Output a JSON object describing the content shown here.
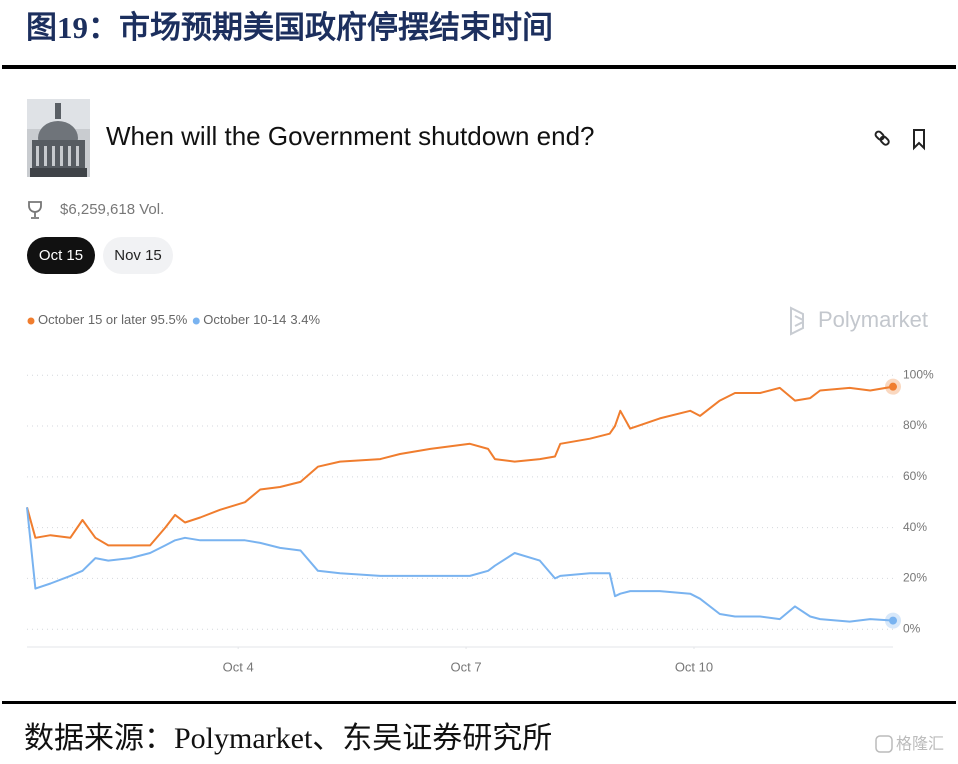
{
  "header": {
    "title": "图19：市场预期美国政府停摆结束时间"
  },
  "card": {
    "title": "When will the Government shutdown end?",
    "volume": "$6,259,618 Vol.",
    "tabs": [
      "Oct 15",
      "Nov 15"
    ],
    "brand": "Polymarket"
  },
  "chart_data": {
    "type": "line",
    "x": [
      1.22,
      1.33,
      1.53,
      1.79,
      1.95,
      2.12,
      2.29,
      2.58,
      2.84,
      3.04,
      3.17,
      3.3,
      3.5,
      3.76,
      4.09,
      4.29,
      4.55,
      4.82,
      5.05,
      5.34,
      5.87,
      6.13,
      6.53,
      7.05,
      7.29,
      7.38,
      7.64,
      7.97,
      8.17,
      8.24,
      8.63,
      8.89,
      8.96,
      9.03,
      9.16,
      9.55,
      9.95,
      10.08,
      10.34,
      10.54,
      10.87,
      11.13,
      11.33,
      11.53,
      11.66,
      12.05,
      12.32,
      12.62
    ],
    "series": [
      {
        "name": "October 15 or later",
        "color": "#f07d2e",
        "latest": {
          "value": 95.5,
          "label": "95.5%"
        },
        "values": [
          48,
          36,
          37,
          36,
          43,
          36,
          33,
          33,
          33,
          40,
          45,
          42,
          44,
          47,
          50,
          55,
          56,
          58,
          64,
          66,
          67,
          69,
          71,
          73,
          71,
          67,
          66,
          67,
          68,
          73,
          75,
          77,
          80,
          86,
          79,
          83,
          86,
          84,
          90,
          93,
          93,
          95,
          90,
          91,
          94,
          95,
          94,
          95.5
        ]
      },
      {
        "name": "October 10-14",
        "color": "#79b3f0",
        "latest": {
          "value": 3.4,
          "label": "3.4%"
        },
        "values": [
          48,
          16,
          18,
          21,
          23,
          28,
          27,
          28,
          30,
          33,
          35,
          36,
          35,
          35,
          35,
          34,
          32,
          31,
          23,
          22,
          21,
          21,
          21,
          21,
          23,
          25,
          30,
          27,
          20,
          21,
          22,
          22,
          13,
          14,
          15,
          15,
          14,
          12,
          6,
          5,
          5,
          4,
          9,
          5,
          4,
          3,
          4,
          3.4
        ]
      }
    ],
    "xlim": [
      1.22,
      12.62
    ],
    "xticks": [
      {
        "value": 4,
        "label": "Oct 4"
      },
      {
        "value": 7,
        "label": "Oct 7"
      },
      {
        "value": 10,
        "label": "Oct 10"
      }
    ],
    "ylim": [
      -7,
      106
    ],
    "yticks": [
      {
        "value": 0,
        "label": "0%"
      },
      {
        "value": 20,
        "label": "20%"
      },
      {
        "value": 40,
        "label": "40%"
      },
      {
        "value": 60,
        "label": "60%"
      },
      {
        "value": 80,
        "label": "80%"
      },
      {
        "value": 100,
        "label": "100%"
      }
    ],
    "grid": true
  },
  "footer": {
    "source": "数据来源：Polymarket、东吴证券研究所",
    "watermark": "格隆汇"
  }
}
